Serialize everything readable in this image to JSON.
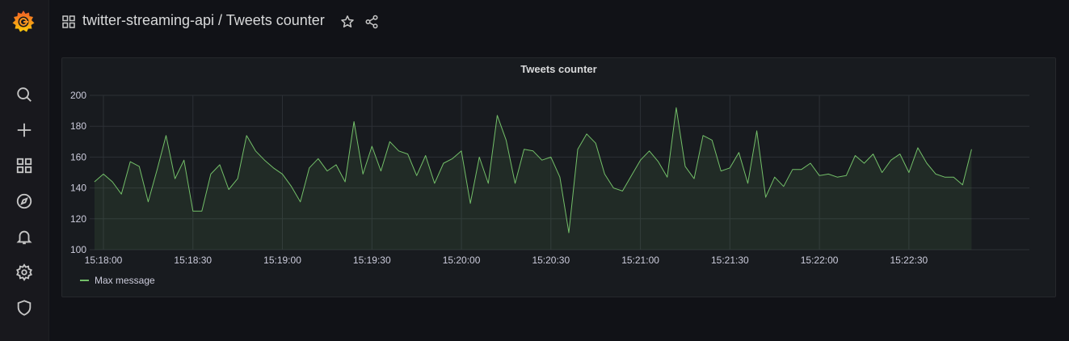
{
  "header": {
    "folder": "twitter-streaming-api",
    "separator": " / ",
    "dashboard": "Tweets counter"
  },
  "sidebar": {
    "items": [
      {
        "icon": "search-icon",
        "name": "sidebar-item-search"
      },
      {
        "icon": "plus-icon",
        "name": "sidebar-item-create"
      },
      {
        "icon": "dashboards-icon",
        "name": "sidebar-item-dashboards"
      },
      {
        "icon": "compass-icon",
        "name": "sidebar-item-explore"
      },
      {
        "icon": "bell-icon",
        "name": "sidebar-item-alerting"
      },
      {
        "icon": "gear-icon",
        "name": "sidebar-item-configuration"
      },
      {
        "icon": "shield-icon",
        "name": "sidebar-item-server-admin"
      }
    ]
  },
  "colors": {
    "background": "#111217",
    "panel": "#181b1f",
    "series": "#73bf69",
    "grid": "#2c3036",
    "brand_orange": "#f46800",
    "brand_yellow": "#fbca0a"
  },
  "chart_data": {
    "type": "line",
    "title": "Tweets counter",
    "ylim": [
      100,
      200
    ],
    "yticks": [
      100,
      120,
      140,
      160,
      180,
      200
    ],
    "x_ticks": [
      "15:18:00",
      "15:18:30",
      "15:19:00",
      "15:19:30",
      "15:20:00",
      "15:20:30",
      "15:21:00",
      "15:21:30",
      "15:22:00",
      "15:22:30"
    ],
    "x_start_seconds": -3,
    "x_step_seconds": 3,
    "series": [
      {
        "name": "Max message",
        "fill": true,
        "values": [
          144,
          149,
          144,
          136,
          157,
          154,
          131,
          152,
          174,
          146,
          158,
          125,
          125,
          149,
          155,
          139,
          146,
          174,
          164,
          158,
          153,
          149,
          141,
          131,
          153,
          159,
          151,
          155,
          144,
          183,
          149,
          167,
          151,
          170,
          164,
          162,
          148,
          161,
          143,
          156,
          159,
          164,
          130,
          160,
          143,
          187,
          171,
          143,
          165,
          164,
          158,
          160,
          147,
          111,
          165,
          175,
          169,
          149,
          140,
          138,
          148,
          158,
          164,
          157,
          147,
          192,
          154,
          146,
          174,
          171,
          151,
          153,
          163,
          143,
          177,
          134,
          147,
          141,
          152,
          152,
          156,
          148,
          149,
          147,
          148,
          161,
          156,
          162,
          150,
          158,
          162,
          150,
          166,
          156,
          149,
          147,
          147,
          142,
          165
        ]
      }
    ]
  }
}
